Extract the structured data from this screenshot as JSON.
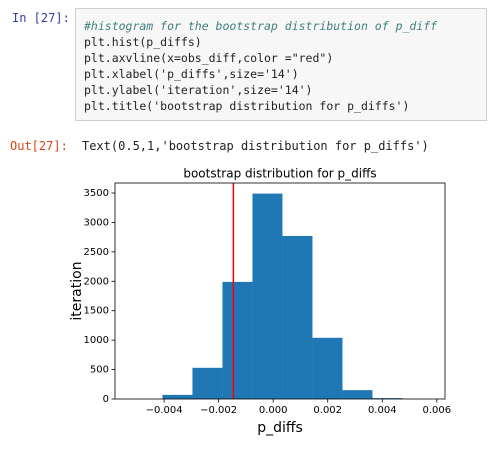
{
  "cells": [
    {
      "prompt": "In [27]:",
      "code": [
        "#histogram for the bootstrap distribution of p_diff",
        "plt.hist(p_diffs)",
        "plt.axvline(x=obs_diff,color =\"red\")",
        "plt.xlabel('p_diffs',size='14')",
        "plt.ylabel('iteration',size='14')",
        "plt.title('bootstrap distribution for p_diffs')"
      ]
    },
    {
      "prompt": "Out[27]:",
      "output": "Text(0.5,1,'bootstrap distribution for p_diffs')"
    }
  ],
  "chart_data": {
    "type": "histogram",
    "title": "bootstrap distribution for p_diffs",
    "x_label": "p_diffs",
    "y_label": "iteration",
    "bins": [
      -0.00516,
      -0.00406,
      -0.00296,
      -0.00186,
      -0.00076,
      0.00034,
      0.00144,
      0.00254,
      0.00364,
      0.00474,
      0.00584
    ],
    "counts": [
      2,
      70,
      530,
      1990,
      3490,
      2770,
      1040,
      150,
      15,
      2
    ],
    "color": "#1f77b4",
    "vline": {
      "value": -0.00146,
      "color": "red"
    },
    "xlim": [
      -0.0058,
      0.0063
    ],
    "xticks": [
      {
        "value": -0.004,
        "label": "−0.004"
      },
      {
        "value": -0.002,
        "label": "−0.002"
      },
      {
        "value": 0,
        "label": "0.000"
      },
      0.002,
      0.004,
      0.006
    ],
    "ylim": [
      0,
      3670
    ],
    "yticks": [
      0,
      500,
      1000,
      1500,
      2000,
      2500,
      3000,
      3500
    ]
  }
}
